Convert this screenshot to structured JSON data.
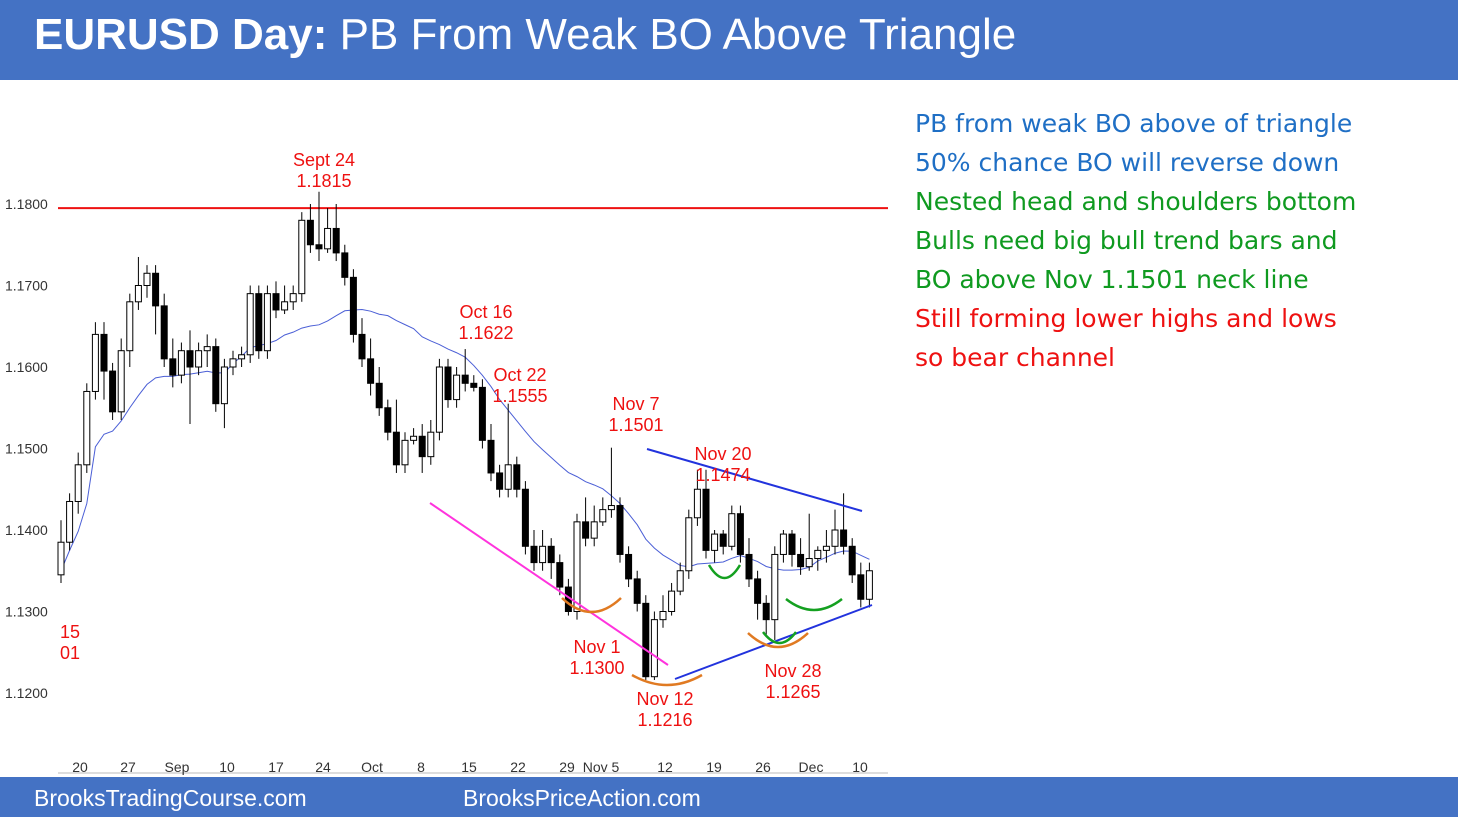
{
  "title": {
    "bold": "EURUSD Day:",
    "rest": " PB From Weak BO Above Triangle"
  },
  "footer": {
    "left": "BrooksTradingCourse.com",
    "right": "BrooksPriceAction.com"
  },
  "notes": [
    {
      "text": "PB from weak BO above of triangle",
      "color": "#1f6fc5"
    },
    {
      "text": "50% chance BO will reverse down",
      "color": "#1f6fc5"
    },
    {
      "text": "Nested head and shoulders bottom",
      "color": "#0f9a20"
    },
    {
      "text": "Bulls need big bull trend bars and",
      "color": "#0f9a20"
    },
    {
      "text": "BO above Nov 1.1501 neck line",
      "color": "#0f9a20"
    },
    {
      "text": "Still forming lower highs and lows",
      "color": "#ee1111"
    },
    {
      "text": "so bear channel",
      "color": "#ee1111"
    }
  ],
  "chart_data": {
    "type": "candlestick",
    "y_tick_labels": [
      "1.1800",
      "1.1700",
      "1.1600",
      "1.1500",
      "1.1400",
      "1.1300",
      "1.1200"
    ],
    "y_ticks": [
      1.18,
      1.17,
      1.16,
      1.15,
      1.14,
      1.13,
      1.12
    ],
    "x_tick_labels": [
      "20",
      "27",
      "Sep",
      "10",
      "17",
      "24",
      "Oct",
      "8",
      "15",
      "22",
      "29",
      "Nov 5",
      "12",
      "19",
      "26",
      "Dec",
      "10"
    ],
    "resistance_line": {
      "price": 1.1795,
      "color": "#ee1111"
    },
    "annotations": [
      {
        "lines": [
          "Sept 24",
          "1.1815"
        ]
      },
      {
        "lines": [
          "Oct 16",
          "1.1622"
        ]
      },
      {
        "lines": [
          "Oct 22",
          "1.1555"
        ]
      },
      {
        "lines": [
          "Nov 7",
          "1.1501"
        ]
      },
      {
        "lines": [
          "Nov 20",
          "1.1474"
        ]
      },
      {
        "lines": [
          "Nov 1",
          "1.1300"
        ]
      },
      {
        "lines": [
          "Nov 12",
          "1.1216"
        ]
      },
      {
        "lines": [
          "Nov 28",
          "1.1265"
        ]
      },
      {
        "lines": [
          "15",
          "01"
        ]
      }
    ],
    "candles": [
      [
        1.1345,
        1.1385,
        1.1412,
        1.1335
      ],
      [
        1.1385,
        1.1435,
        1.1445,
        1.1375
      ],
      [
        1.1435,
        1.148,
        1.1495,
        1.142
      ],
      [
        1.148,
        1.157,
        1.158,
        1.147
      ],
      [
        1.157,
        1.164,
        1.1655,
        1.156
      ],
      [
        1.164,
        1.1595,
        1.1655,
        1.156
      ],
      [
        1.1595,
        1.1545,
        1.1605,
        1.1535
      ],
      [
        1.1545,
        1.162,
        1.1635,
        1.1535
      ],
      [
        1.162,
        1.168,
        1.169,
        1.16
      ],
      [
        1.168,
        1.17,
        1.1735,
        1.167
      ],
      [
        1.17,
        1.1715,
        1.1725,
        1.1685
      ],
      [
        1.1715,
        1.1675,
        1.1725,
        1.164
      ],
      [
        1.1675,
        1.161,
        1.169,
        1.16
      ],
      [
        1.161,
        1.159,
        1.1635,
        1.1575
      ],
      [
        1.159,
        1.162,
        1.163,
        1.158
      ],
      [
        1.162,
        1.16,
        1.1645,
        1.153
      ],
      [
        1.16,
        1.162,
        1.163,
        1.159
      ],
      [
        1.162,
        1.1625,
        1.164,
        1.16
      ],
      [
        1.1625,
        1.1555,
        1.1635,
        1.1545
      ],
      [
        1.1555,
        1.16,
        1.161,
        1.1525
      ],
      [
        1.16,
        1.161,
        1.162,
        1.159
      ],
      [
        1.161,
        1.1615,
        1.1625,
        1.16
      ],
      [
        1.1615,
        1.169,
        1.17,
        1.1605
      ],
      [
        1.169,
        1.162,
        1.17,
        1.161
      ],
      [
        1.162,
        1.169,
        1.17,
        1.161
      ],
      [
        1.169,
        1.167,
        1.1705,
        1.166
      ],
      [
        1.167,
        1.168,
        1.17,
        1.1665
      ],
      [
        1.168,
        1.169,
        1.17,
        1.167
      ],
      [
        1.169,
        1.178,
        1.179,
        1.168
      ],
      [
        1.178,
        1.175,
        1.18,
        1.174
      ],
      [
        1.175,
        1.1745,
        1.1815,
        1.173
      ],
      [
        1.1745,
        1.177,
        1.1795,
        1.174
      ],
      [
        1.177,
        1.174,
        1.18,
        1.173
      ],
      [
        1.174,
        1.171,
        1.175,
        1.17
      ],
      [
        1.171,
        1.164,
        1.172,
        1.163
      ],
      [
        1.164,
        1.161,
        1.166,
        1.16
      ],
      [
        1.161,
        1.158,
        1.1635,
        1.1565
      ],
      [
        1.158,
        1.155,
        1.16,
        1.154
      ],
      [
        1.155,
        1.152,
        1.156,
        1.151
      ],
      [
        1.152,
        1.148,
        1.156,
        1.147
      ],
      [
        1.148,
        1.151,
        1.152,
        1.147
      ],
      [
        1.151,
        1.1515,
        1.1525,
        1.1505
      ],
      [
        1.1515,
        1.149,
        1.153,
        1.147
      ],
      [
        1.149,
        1.152,
        1.1535,
        1.148
      ],
      [
        1.152,
        1.16,
        1.161,
        1.151
      ],
      [
        1.16,
        1.156,
        1.161,
        1.155
      ],
      [
        1.156,
        1.159,
        1.16,
        1.155
      ],
      [
        1.159,
        1.158,
        1.1622,
        1.157
      ],
      [
        1.158,
        1.1575,
        1.159,
        1.157
      ],
      [
        1.1575,
        1.151,
        1.1585,
        1.15
      ],
      [
        1.151,
        1.147,
        1.153,
        1.146
      ],
      [
        1.147,
        1.145,
        1.148,
        1.144
      ],
      [
        1.145,
        1.148,
        1.1555,
        1.144
      ],
      [
        1.148,
        1.145,
        1.149,
        1.144
      ],
      [
        1.145,
        1.138,
        1.146,
        1.137
      ],
      [
        1.138,
        1.136,
        1.14,
        1.135
      ],
      [
        1.136,
        1.138,
        1.14,
        1.135
      ],
      [
        1.138,
        1.136,
        1.139,
        1.134
      ],
      [
        1.136,
        1.133,
        1.137,
        1.132
      ],
      [
        1.133,
        1.13,
        1.134,
        1.1295
      ],
      [
        1.13,
        1.141,
        1.142,
        1.129
      ],
      [
        1.141,
        1.139,
        1.144,
        1.138
      ],
      [
        1.139,
        1.141,
        1.143,
        1.138
      ],
      [
        1.141,
        1.1425,
        1.144,
        1.1405
      ],
      [
        1.1425,
        1.143,
        1.1501,
        1.1415
      ],
      [
        1.143,
        1.137,
        1.144,
        1.136
      ],
      [
        1.137,
        1.134,
        1.138,
        1.133
      ],
      [
        1.134,
        1.131,
        1.135,
        1.13
      ],
      [
        1.131,
        1.122,
        1.132,
        1.1216
      ],
      [
        1.122,
        1.129,
        1.13,
        1.1216
      ],
      [
        1.129,
        1.13,
        1.132,
        1.128
      ],
      [
        1.13,
        1.1325,
        1.1335,
        1.1295
      ],
      [
        1.1325,
        1.135,
        1.136,
        1.132
      ],
      [
        1.135,
        1.1415,
        1.1425,
        1.134
      ],
      [
        1.1415,
        1.145,
        1.1474,
        1.1405
      ],
      [
        1.145,
        1.1375,
        1.1474,
        1.1365
      ],
      [
        1.1375,
        1.1395,
        1.14,
        1.136
      ],
      [
        1.1395,
        1.138,
        1.14,
        1.137
      ],
      [
        1.138,
        1.142,
        1.143,
        1.1375
      ],
      [
        1.142,
        1.137,
        1.143,
        1.136
      ],
      [
        1.137,
        1.134,
        1.139,
        1.133
      ],
      [
        1.134,
        1.131,
        1.135,
        1.129
      ],
      [
        1.131,
        1.129,
        1.132,
        1.127
      ],
      [
        1.129,
        1.137,
        1.138,
        1.1265
      ],
      [
        1.137,
        1.1395,
        1.14,
        1.136
      ],
      [
        1.1395,
        1.137,
        1.14,
        1.1355
      ],
      [
        1.137,
        1.1355,
        1.139,
        1.1345
      ],
      [
        1.1355,
        1.1365,
        1.142,
        1.135
      ],
      [
        1.1365,
        1.1375,
        1.138,
        1.135
      ],
      [
        1.1375,
        1.138,
        1.14,
        1.136
      ],
      [
        1.138,
        1.14,
        1.1425,
        1.137
      ],
      [
        1.14,
        1.138,
        1.1445,
        1.137
      ],
      [
        1.138,
        1.1345,
        1.139,
        1.1335
      ],
      [
        1.1345,
        1.1315,
        1.136,
        1.1305
      ],
      [
        1.1315,
        1.135,
        1.136,
        1.1305
      ]
    ]
  }
}
